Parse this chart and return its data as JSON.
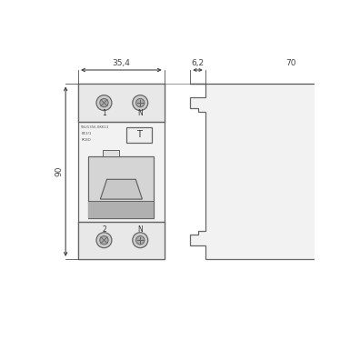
{
  "bg_color": "#ffffff",
  "line_color": "#666666",
  "dim_color": "#444444",
  "dim_label_35": "35,4",
  "dim_label_90": "90",
  "dim_label_62": "6,2",
  "dim_label_70": "70",
  "body_fill": "#f2f2f2",
  "section_fill": "#e8e8e8",
  "screw_fill": "#cccccc",
  "screw_inner_fill": "#aaaaaa",
  "switch_outer_fill": "#d5d5d5",
  "switch_inner_fill": "#c0c0c0",
  "gray_band_fill": "#b0b0b0",
  "handle_fill": "#c8c8c8",
  "test_btn_fill": "#efefef",
  "led_fill": "#e0e0e0"
}
